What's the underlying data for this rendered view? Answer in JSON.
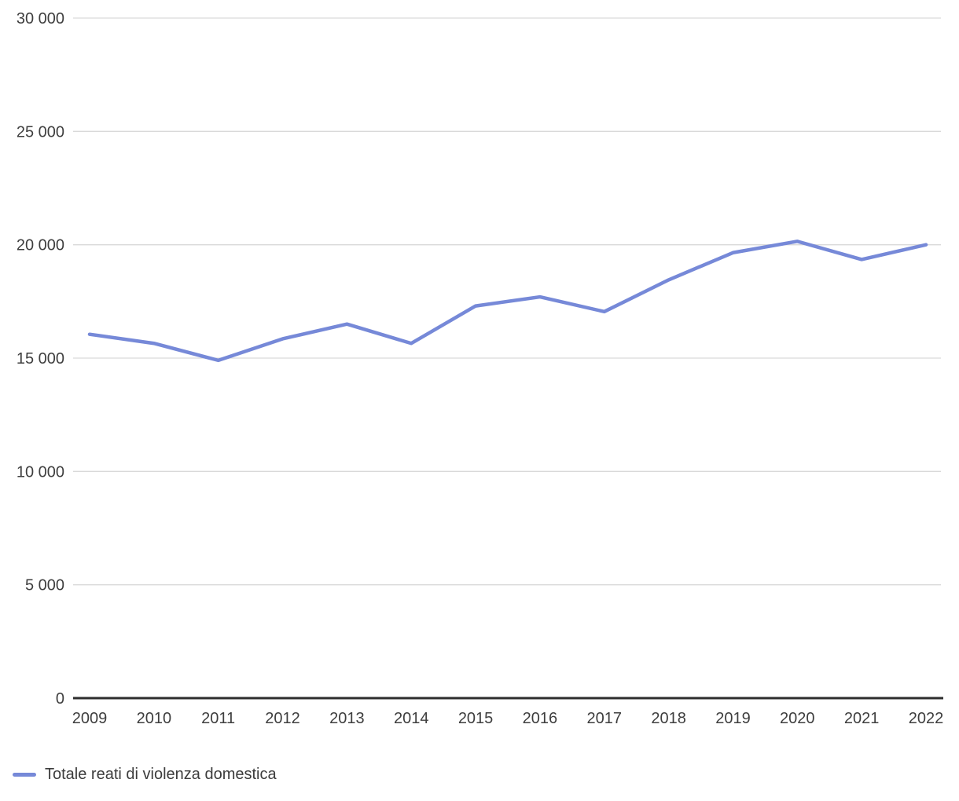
{
  "chart_data": {
    "type": "line",
    "title": "",
    "xlabel": "",
    "ylabel": "",
    "categories": [
      "2009",
      "2010",
      "2011",
      "2012",
      "2013",
      "2014",
      "2015",
      "2016",
      "2017",
      "2018",
      "2019",
      "2020",
      "2021",
      "2022"
    ],
    "series": [
      {
        "name": "Totale reati di violenza domestica",
        "values": [
          16050,
          15650,
          14900,
          15850,
          16500,
          15650,
          17300,
          17700,
          17050,
          18450,
          19650,
          20150,
          19350,
          20000
        ]
      }
    ],
    "ylim": [
      0,
      30000
    ],
    "yticks": [
      {
        "value": 0,
        "label": "0"
      },
      {
        "value": 5000,
        "label": "5 000"
      },
      {
        "value": 10000,
        "label": "10 000"
      },
      {
        "value": 15000,
        "label": "15 000"
      },
      {
        "value": 20000,
        "label": "20 000"
      },
      {
        "value": 25000,
        "label": "25 000"
      },
      {
        "value": 30000,
        "label": "30 000"
      }
    ],
    "grid": true,
    "legend_position": "bottom-left",
    "colors": {
      "line": "#7689d8",
      "grid": "#d9d9d9",
      "axis": "#2d2d2d",
      "text": "#3e3e3e"
    }
  }
}
